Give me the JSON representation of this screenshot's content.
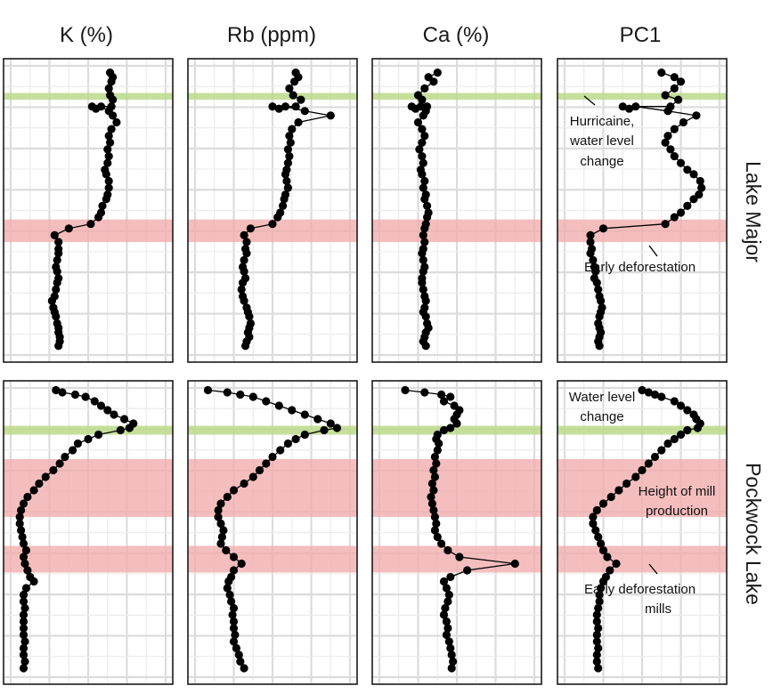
{
  "figure": {
    "columns": [
      "K (%)",
      "Rb (ppm)",
      "Ca (%)",
      "PC1"
    ],
    "rows": [
      "Lake Major",
      "Pockwock Lake"
    ]
  },
  "colors": {
    "hurricane_band": "#bcd98a",
    "event_band": "#f2aeae",
    "points": "#000000",
    "grid": "#e3e3e3"
  },
  "annotations": {
    "lake_major": {
      "hurricane": [
        "Hurricaine,",
        "water level",
        "change"
      ],
      "deforestation": [
        "Early deforestation"
      ]
    },
    "pockwock": {
      "water_level": [
        "Water level",
        "change"
      ],
      "mill_height": [
        "Height of mill",
        "production"
      ],
      "deforestation": [
        "Early deforestation",
        "mills"
      ]
    }
  },
  "chart_data": [
    {
      "type": "scatter",
      "row": "Lake Major",
      "column": "K (%)",
      "connected": true,
      "x": [
        0.77,
        0.79,
        0.78,
        0.76,
        0.77,
        0.79,
        0.78,
        0.63,
        0.66,
        0.7,
        0.76,
        0.79,
        0.82,
        0.78,
        0.76,
        0.77,
        0.75,
        0.76,
        0.75,
        0.73,
        0.74,
        0.76,
        0.76,
        0.75,
        0.74,
        0.71,
        0.7,
        0.68,
        0.62,
        0.45,
        0.34,
        0.37,
        0.37,
        0.37,
        0.36,
        0.35,
        0.36,
        0.37,
        0.36,
        0.35,
        0.34,
        0.32,
        0.33,
        0.34,
        0.35,
        0.36,
        0.37,
        0.37,
        0.38,
        0.38,
        0.37
      ],
      "y": [
        3,
        5,
        7,
        10,
        13,
        15,
        18,
        18,
        19,
        18,
        20,
        22,
        25,
        28,
        31,
        34,
        37,
        40,
        43,
        46,
        48,
        51,
        54,
        57,
        59,
        62,
        65,
        67,
        70,
        72,
        75,
        78,
        81,
        83,
        86,
        89,
        91,
        94,
        96,
        99,
        102,
        104,
        107,
        109,
        111,
        114,
        116,
        118,
        120,
        122,
        124
      ],
      "ylim": [
        128,
        0
      ],
      "bands": [
        {
          "from": 12,
          "to": 15,
          "kind": "hurricane"
        },
        {
          "from": 68,
          "to": 78,
          "kind": "event"
        }
      ]
    },
    {
      "type": "scatter",
      "row": "Lake Major",
      "column": "Rb (ppm)",
      "connected": true,
      "x": [
        0.78,
        0.8,
        0.77,
        0.73,
        0.76,
        0.82,
        0.78,
        0.6,
        0.65,
        0.7,
        0.85,
        1.05,
        0.8,
        0.75,
        0.73,
        0.74,
        0.72,
        0.73,
        0.72,
        0.71,
        0.7,
        0.71,
        0.72,
        0.7,
        0.69,
        0.68,
        0.66,
        0.64,
        0.6,
        0.43,
        0.38,
        0.4,
        0.39,
        0.4,
        0.38,
        0.37,
        0.38,
        0.39,
        0.37,
        0.36,
        0.37,
        0.38,
        0.4,
        0.41,
        0.42,
        0.43,
        0.42,
        0.41,
        0.42,
        0.4,
        0.39
      ],
      "y": [
        3,
        5,
        7,
        10,
        13,
        15,
        18,
        18,
        19,
        18,
        20,
        22,
        25,
        28,
        31,
        34,
        37,
        40,
        43,
        46,
        48,
        51,
        54,
        57,
        59,
        62,
        65,
        67,
        70,
        72,
        75,
        78,
        81,
        83,
        86,
        89,
        91,
        94,
        96,
        99,
        102,
        104,
        107,
        109,
        111,
        114,
        116,
        118,
        120,
        122,
        124
      ],
      "ylim": [
        128,
        0
      ],
      "bands": [
        {
          "from": 12,
          "to": 15,
          "kind": "hurricane"
        },
        {
          "from": 68,
          "to": 78,
          "kind": "event"
        }
      ]
    },
    {
      "type": "scatter",
      "row": "Lake Major",
      "column": "Ca (%)",
      "connected": true,
      "x": [
        0.45,
        0.38,
        0.42,
        0.35,
        0.3,
        0.33,
        0.37,
        0.25,
        0.28,
        0.32,
        0.36,
        0.34,
        0.3,
        0.33,
        0.35,
        0.33,
        0.31,
        0.33,
        0.34,
        0.32,
        0.33,
        0.35,
        0.34,
        0.36,
        0.35,
        0.37,
        0.38,
        0.37,
        0.36,
        0.35,
        0.34,
        0.35,
        0.34,
        0.33,
        0.34,
        0.35,
        0.34,
        0.33,
        0.33,
        0.34,
        0.35,
        0.36,
        0.35,
        0.34,
        0.36,
        0.37,
        0.38,
        0.36,
        0.35,
        0.34,
        0.36
      ],
      "y": [
        3,
        5,
        7,
        10,
        13,
        15,
        18,
        18,
        19,
        18,
        20,
        22,
        25,
        28,
        31,
        34,
        37,
        40,
        43,
        46,
        48,
        51,
        54,
        57,
        59,
        62,
        65,
        67,
        70,
        72,
        75,
        78,
        81,
        83,
        86,
        89,
        91,
        94,
        96,
        99,
        102,
        104,
        107,
        109,
        111,
        114,
        116,
        118,
        120,
        122,
        124
      ],
      "ylim": [
        128,
        0
      ],
      "bands": [
        {
          "from": 12,
          "to": 15,
          "kind": "hurricane"
        },
        {
          "from": 68,
          "to": 78,
          "kind": "event"
        }
      ]
    },
    {
      "type": "scatter",
      "row": "Lake Major",
      "column": "PC1",
      "connected": true,
      "x": [
        0.75,
        0.85,
        0.9,
        0.85,
        0.78,
        0.88,
        0.82,
        0.45,
        0.5,
        0.55,
        0.8,
        1.02,
        0.92,
        0.85,
        0.8,
        0.78,
        0.82,
        0.85,
        0.9,
        0.95,
        1.0,
        1.05,
        1.06,
        1.04,
        1.0,
        0.95,
        0.9,
        0.85,
        0.78,
        0.3,
        0.2,
        0.2,
        0.21,
        0.2,
        0.22,
        0.23,
        0.24,
        0.23,
        0.25,
        0.26,
        0.27,
        0.28,
        0.29,
        0.28,
        0.27,
        0.26,
        0.27,
        0.28,
        0.27,
        0.26,
        0.27
      ],
      "y": [
        3,
        5,
        7,
        10,
        13,
        15,
        18,
        18,
        19,
        18,
        20,
        22,
        25,
        28,
        31,
        34,
        37,
        40,
        43,
        46,
        48,
        51,
        54,
        57,
        59,
        62,
        65,
        67,
        70,
        72,
        75,
        78,
        81,
        83,
        86,
        89,
        91,
        94,
        96,
        99,
        102,
        104,
        107,
        109,
        111,
        114,
        116,
        118,
        120,
        122,
        124
      ],
      "ylim": [
        128,
        0
      ],
      "bands": [
        {
          "from": 12,
          "to": 15,
          "kind": "hurricane"
        },
        {
          "from": 68,
          "to": 78,
          "kind": "event"
        }
      ]
    },
    {
      "type": "scatter",
      "row": "Pockwock Lake",
      "column": "K (%)",
      "connected": true,
      "x": [
        0.35,
        0.4,
        0.5,
        0.58,
        0.65,
        0.7,
        0.75,
        0.8,
        0.88,
        0.95,
        0.92,
        0.85,
        0.68,
        0.6,
        0.52,
        0.48,
        0.42,
        0.38,
        0.33,
        0.27,
        0.22,
        0.18,
        0.13,
        0.1,
        0.08,
        0.07,
        0.07,
        0.08,
        0.09,
        0.1,
        0.12,
        0.1,
        0.11,
        0.13,
        0.15,
        0.18,
        0.12,
        0.1,
        0.1,
        0.11,
        0.1,
        0.1,
        0.1,
        0.1,
        0.11,
        0.1,
        0.1,
        0.11,
        0.1
      ],
      "y": [
        1,
        2,
        3,
        4,
        6,
        8,
        10,
        12,
        14,
        16,
        18,
        19,
        21,
        23,
        25,
        28,
        31,
        34,
        37,
        40,
        43,
        46,
        49,
        52,
        55,
        58,
        61,
        64,
        67,
        70,
        73,
        76,
        79,
        82,
        85,
        87,
        90,
        93,
        96,
        99,
        102,
        105,
        108,
        111,
        114,
        117,
        120,
        123,
        126
      ],
      "ylim": [
        130,
        0
      ],
      "bands": [
        {
          "from": 17,
          "to": 21,
          "kind": "hurricane"
        },
        {
          "from": 32,
          "to": 58,
          "kind": "event"
        },
        {
          "from": 71,
          "to": 83,
          "kind": "event"
        }
      ]
    },
    {
      "type": "scatter",
      "row": "Pockwock Lake",
      "column": "Rb (ppm)",
      "connected": true,
      "x": [
        0.1,
        0.25,
        0.35,
        0.45,
        0.55,
        0.65,
        0.75,
        0.85,
        0.95,
        1.05,
        1.1,
        1.0,
        0.85,
        0.78,
        0.72,
        0.66,
        0.6,
        0.55,
        0.5,
        0.45,
        0.38,
        0.3,
        0.25,
        0.2,
        0.18,
        0.18,
        0.2,
        0.22,
        0.21,
        0.2,
        0.24,
        0.3,
        0.36,
        0.3,
        0.28,
        0.26,
        0.25,
        0.27,
        0.28,
        0.3,
        0.29,
        0.3,
        0.3,
        0.31,
        0.3,
        0.32,
        0.34,
        0.35,
        0.38
      ],
      "y": [
        1,
        2,
        3,
        4,
        6,
        8,
        10,
        12,
        14,
        16,
        18,
        19,
        21,
        23,
        25,
        28,
        31,
        34,
        37,
        40,
        43,
        46,
        49,
        52,
        55,
        58,
        61,
        64,
        67,
        70,
        73,
        76,
        79,
        82,
        85,
        87,
        90,
        93,
        96,
        99,
        102,
        105,
        108,
        111,
        114,
        117,
        120,
        123,
        126
      ],
      "ylim": [
        130,
        0
      ],
      "bands": [
        {
          "from": 17,
          "to": 21,
          "kind": "hurricane"
        },
        {
          "from": 32,
          "to": 58,
          "kind": "event"
        },
        {
          "from": 71,
          "to": 83,
          "kind": "event"
        }
      ]
    },
    {
      "type": "scatter",
      "row": "Pockwock Lake",
      "column": "Ca (%)",
      "connected": true,
      "x": [
        0.2,
        0.35,
        0.48,
        0.55,
        0.5,
        0.58,
        0.62,
        0.6,
        0.58,
        0.6,
        0.55,
        0.5,
        0.45,
        0.44,
        0.46,
        0.45,
        0.43,
        0.44,
        0.42,
        0.43,
        0.41,
        0.42,
        0.4,
        0.41,
        0.42,
        0.43,
        0.44,
        0.43,
        0.45,
        0.48,
        0.53,
        0.62,
        1.05,
        0.68,
        0.55,
        0.5,
        0.52,
        0.54,
        0.53,
        0.51,
        0.5,
        0.52,
        0.53,
        0.52,
        0.54,
        0.55,
        0.56,
        0.57,
        0.56
      ],
      "y": [
        1,
        2,
        3,
        4,
        6,
        8,
        10,
        12,
        14,
        16,
        18,
        19,
        21,
        23,
        25,
        28,
        31,
        34,
        37,
        40,
        43,
        46,
        49,
        52,
        55,
        58,
        61,
        64,
        67,
        70,
        73,
        76,
        79,
        82,
        85,
        87,
        90,
        93,
        96,
        99,
        102,
        105,
        108,
        111,
        114,
        117,
        120,
        123,
        126
      ],
      "ylim": [
        130,
        0
      ],
      "bands": [
        {
          "from": 17,
          "to": 21,
          "kind": "hurricane"
        },
        {
          "from": 32,
          "to": 58,
          "kind": "event"
        },
        {
          "from": 71,
          "to": 83,
          "kind": "event"
        }
      ]
    },
    {
      "type": "scatter",
      "row": "Pockwock Lake",
      "column": "PC1",
      "connected": true,
      "x": [
        0.6,
        0.65,
        0.7,
        0.75,
        0.85,
        0.9,
        0.95,
        1.0,
        1.02,
        1.05,
        1.03,
        0.95,
        0.9,
        0.85,
        0.8,
        0.75,
        0.7,
        0.65,
        0.6,
        0.55,
        0.48,
        0.42,
        0.36,
        0.3,
        0.25,
        0.22,
        0.22,
        0.24,
        0.26,
        0.28,
        0.3,
        0.33,
        0.4,
        0.35,
        0.32,
        0.3,
        0.28,
        0.27,
        0.27,
        0.26,
        0.25,
        0.25,
        0.26,
        0.25,
        0.25,
        0.26,
        0.25,
        0.25,
        0.26
      ],
      "y": [
        1,
        2,
        3,
        4,
        6,
        8,
        10,
        12,
        14,
        16,
        18,
        19,
        21,
        23,
        25,
        28,
        31,
        34,
        37,
        40,
        43,
        46,
        49,
        52,
        55,
        58,
        61,
        64,
        67,
        70,
        73,
        76,
        79,
        82,
        85,
        87,
        90,
        93,
        96,
        99,
        102,
        105,
        108,
        111,
        114,
        117,
        120,
        123,
        126
      ],
      "ylim": [
        130,
        0
      ],
      "bands": [
        {
          "from": 17,
          "to": 21,
          "kind": "hurricane"
        },
        {
          "from": 32,
          "to": 58,
          "kind": "event"
        },
        {
          "from": 71,
          "to": 83,
          "kind": "event"
        }
      ]
    }
  ]
}
